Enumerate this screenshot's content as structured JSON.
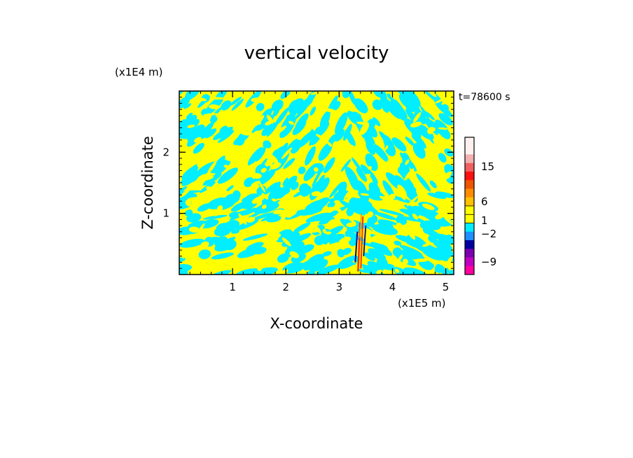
{
  "chart_data": {
    "type": "heatmap",
    "title": "vertical velocity",
    "xlabel": "X-coordinate",
    "ylabel": "Z-coordinate",
    "x_multiplier": "(x1E5 m)",
    "y_multiplier": "(x1E4 m)",
    "time_label": "t=78600 s",
    "xlim": [
      0,
      5.15
    ],
    "ylim": [
      0,
      3
    ],
    "x_ticks": [
      1,
      2,
      3,
      4,
      5
    ],
    "y_ticks": [
      1,
      2
    ],
    "colorbar": {
      "labeled_ticks": [
        {
          "value": 15,
          "label": "15"
        },
        {
          "value": 6,
          "label": "6"
        },
        {
          "value": 1,
          "label": "1"
        },
        {
          "value": -2,
          "label": "−2"
        },
        {
          "value": -9,
          "label": "−9"
        }
      ],
      "levels": [
        {
          "color": "#fff0f0"
        },
        {
          "color": "#fff0f0"
        },
        {
          "color": "#f2b0b0"
        },
        {
          "color": "#f06060"
        },
        {
          "color": "#ff1010"
        },
        {
          "color": "#ee5500"
        },
        {
          "color": "#ff8c00"
        },
        {
          "color": "#ffc000"
        },
        {
          "color": "#ffff00"
        },
        {
          "color": "#ffff00"
        },
        {
          "color": "#00eeff"
        },
        {
          "color": "#1e90ff"
        },
        {
          "color": "#0000a0"
        },
        {
          "color": "#7a00b0"
        },
        {
          "color": "#c000c0"
        },
        {
          "color": "#ff00a0"
        }
      ]
    },
    "field_colors": {
      "positive_small": "#ffff00",
      "negative_small": "#00eeff",
      "strong_positive": "#ff3000",
      "strong_negative": "#0000a0"
    }
  }
}
